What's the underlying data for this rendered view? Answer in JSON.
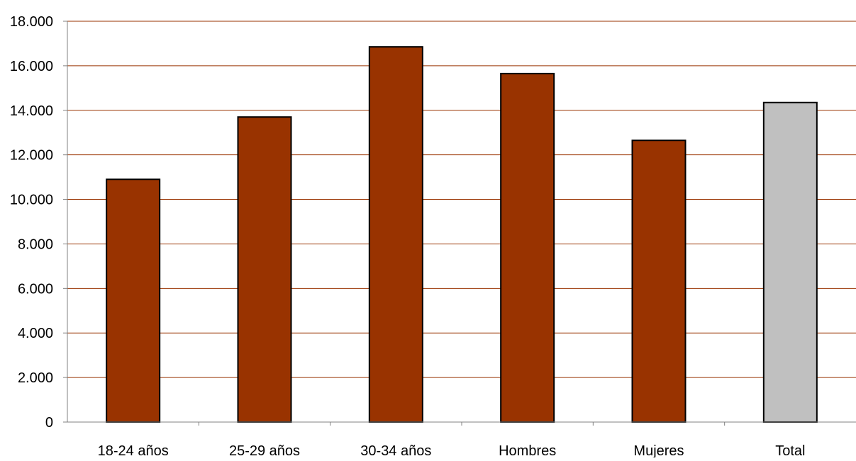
{
  "chart_data": {
    "type": "bar",
    "title": "",
    "xlabel": "",
    "ylabel": "",
    "categories": [
      "18-24 años",
      "25-29 años",
      "30-34 años",
      "Hombres",
      "Mujeres",
      "Total"
    ],
    "values": [
      10900,
      13700,
      16850,
      15650,
      12650,
      14350
    ],
    "ylim": [
      0,
      18000
    ],
    "yticks": [
      0,
      2000,
      4000,
      6000,
      8000,
      10000,
      12000,
      14000,
      16000,
      18000
    ],
    "ytick_labels": [
      "0",
      "2.000",
      "4.000",
      "6.000",
      "8.000",
      "10.000",
      "12.000",
      "14.000",
      "16.000",
      "18.000"
    ],
    "grid": true,
    "legend": "none",
    "colors": {
      "bar": "#993300",
      "highlight_bar": "#c0c0c0",
      "bar_outline": "#000000",
      "gridline": "#993300",
      "axis": "#808080"
    },
    "highlight_category": "Total"
  }
}
